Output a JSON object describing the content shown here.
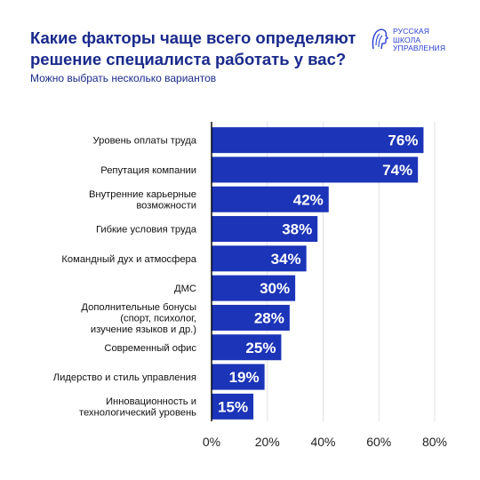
{
  "header": {
    "title_lines": [
      "Какие факторы чаще всего определяют",
      "решение специалиста работать у вас?"
    ],
    "subtitle": "Можно выбрать несколько вариантов"
  },
  "logo": {
    "lines": [
      "РУССКАЯ",
      "ШКОЛА",
      "УПРАВЛЕНИЯ"
    ],
    "icon": "bust-profile-icon",
    "color": "#2a3fd0"
  },
  "colors": {
    "bar": "#1b34b8",
    "title": "#1a2a8c",
    "axis": "#000000",
    "grid": "#e0e0e0"
  },
  "chart_data": {
    "type": "bar",
    "orientation": "horizontal",
    "categories": [
      [
        "Уровень оплаты труда"
      ],
      [
        "Репутация компании"
      ],
      [
        "Внутренние карьерные",
        "возможности"
      ],
      [
        "Гибкие условия труда"
      ],
      [
        "Командный дух и атмосфера"
      ],
      [
        "ДМС"
      ],
      [
        "Дополнительные бонусы",
        "(спорт, психолог,",
        "изучение языков и др.)"
      ],
      [
        "Современный офис"
      ],
      [
        "Лидерство и стиль управления"
      ],
      [
        "Инновационность и",
        "технологический уровень"
      ]
    ],
    "values": [
      76,
      74,
      42,
      38,
      34,
      30,
      28,
      25,
      19,
      15
    ],
    "value_labels": [
      "76%",
      "74%",
      "42%",
      "38%",
      "34%",
      "30%",
      "28%",
      "25%",
      "19%",
      "15%"
    ],
    "xlim": [
      0,
      80
    ],
    "xticks": [
      "0%",
      "20%",
      "40%",
      "60%",
      "80%"
    ],
    "grid": true
  }
}
